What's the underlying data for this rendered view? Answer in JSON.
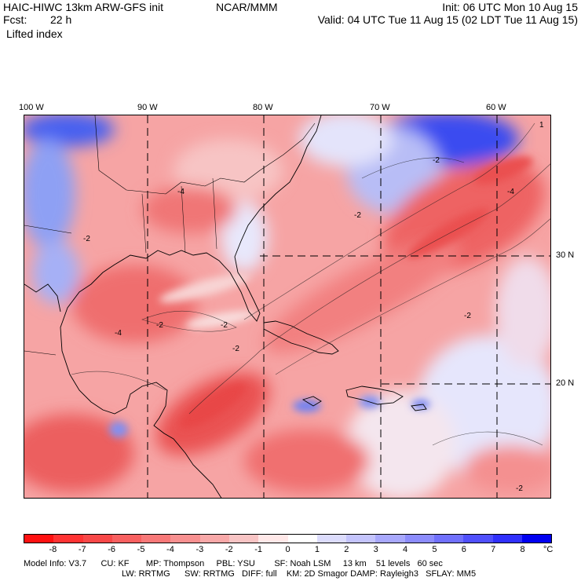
{
  "header": {
    "model_title": "HAIC-HIWC 13km ARW-GFS init",
    "org": "NCAR/MMM",
    "forecast_label": "Fcst:",
    "forecast_hours": "22 h",
    "field_name": "Lifted index",
    "init_time": "Init: 06 UTC Mon 10 Aug 15",
    "valid_time": "Valid: 04 UTC Tue 11 Aug 15 (02 LDT Tue 11 Aug 15)"
  },
  "map": {
    "lon_labels": [
      "100 W",
      "90 W",
      "80 W",
      "70 W",
      "60 W"
    ],
    "lat_labels": [
      "30 N",
      "20 N"
    ],
    "contour_labels": [
      "-2",
      "-4",
      "-2",
      "-4",
      "-2",
      "-2",
      "-2",
      "-4",
      "-2",
      "-2",
      "1",
      "-2"
    ]
  },
  "colorbar": {
    "ticks": [
      "-8",
      "-7",
      "-6",
      "-5",
      "-4",
      "-3",
      "-2",
      "-1",
      "0",
      "1",
      "2",
      "3",
      "4",
      "5",
      "6",
      "7",
      "8"
    ],
    "unit": "°C",
    "colors": [
      "#ff1111",
      "#ff3333",
      "#f84848",
      "#f86060",
      "#f87878",
      "#f89090",
      "#f8a8a8",
      "#f8c4c4",
      "#ffe8e8",
      "#ffffff",
      "#dcdcfc",
      "#c4c4fc",
      "#a8a8fc",
      "#8c8cfc",
      "#7070fc",
      "#5050fc",
      "#3030fc",
      "#0000f0"
    ]
  },
  "footer": {
    "line1": "Model Info: V3.7      CU: KF       MP: Thompson     PBL: YSU        SF: Noah LSM     13 km    51 levels   60 sec",
    "line2": "LW: RRTMG      SW: RRTMG   DIFF: full    KM: 2D Smagor DAMP: Rayleigh3   SFLAY: MM5"
  }
}
